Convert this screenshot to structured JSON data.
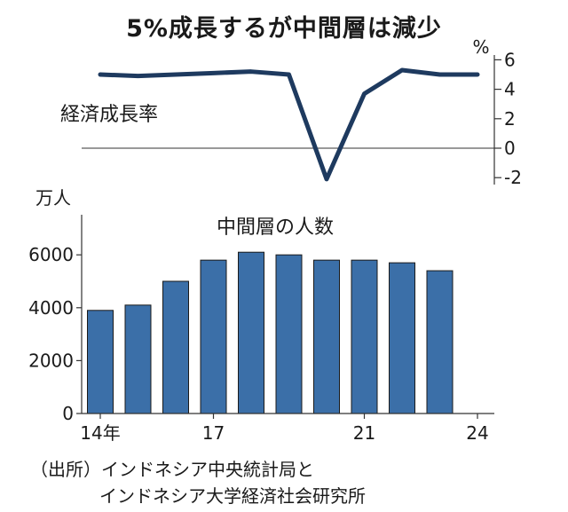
{
  "title": "5%成長するが中間層は減少",
  "chart_data": [
    {
      "type": "line",
      "label": "経済成長率",
      "unit": "%",
      "x": [
        2014,
        2015,
        2016,
        2017,
        2018,
        2019,
        2020,
        2021,
        2022,
        2023,
        2024
      ],
      "values": [
        5.0,
        4.9,
        5.0,
        5.1,
        5.2,
        5.0,
        -2.1,
        3.7,
        5.3,
        5.0,
        5.0
      ],
      "yticks": [
        "6",
        "4",
        "2",
        "0",
        "-2"
      ],
      "ylim": [
        -2,
        6
      ],
      "color": "#1e3a5f"
    },
    {
      "type": "bar",
      "title": "中間層の人数",
      "unit": "万人",
      "categories": [
        2014,
        2015,
        2016,
        2017,
        2018,
        2019,
        2020,
        2021,
        2022,
        2023
      ],
      "values": [
        3900,
        4100,
        5000,
        5800,
        6100,
        6000,
        5800,
        5800,
        5700,
        5400
      ],
      "yticks": [
        "6000",
        "4000",
        "2000",
        "0"
      ],
      "ylim": [
        0,
        7000
      ],
      "color": "#3b6fa8"
    }
  ],
  "x_tick_labels": [
    "14年",
    "17",
    "21",
    "24"
  ],
  "source_line1": "（出所）インドネシア中央統計局と",
  "source_line2": "インドネシア大学経済社会研究所"
}
